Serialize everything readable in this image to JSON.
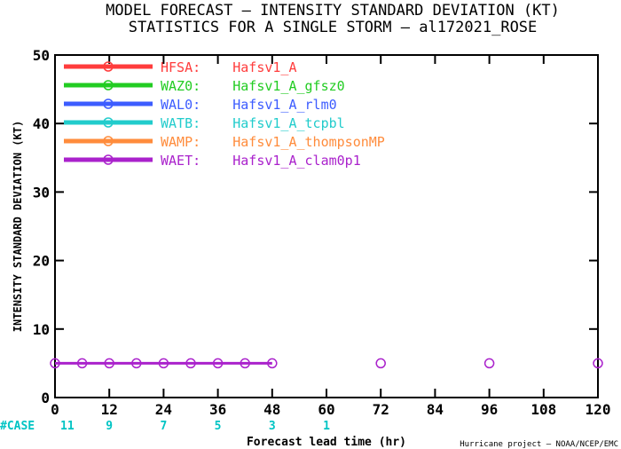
{
  "chart_data": {
    "type": "line",
    "title": "MODEL FORECAST — INTENSITY STANDARD DEVIATION (KT)",
    "subtitle": "STATISTICS FOR A SINGLE STORM — al172021_ROSE",
    "xlabel": "Forecast lead time (hr)",
    "ylabel": "INTENSITY STANDARD DEVIATION (KT)",
    "xlim": [
      0,
      120
    ],
    "ylim": [
      0,
      50
    ],
    "xticks": [
      0,
      12,
      24,
      36,
      48,
      60,
      72,
      84,
      96,
      108,
      120
    ],
    "yticks": [
      0,
      10,
      20,
      30,
      40,
      50
    ],
    "legend_position": "top-left",
    "series": [
      {
        "name": "HFSA: Hafsv1_A",
        "code": "HFSA:",
        "model": "Hafsv1_A",
        "color": "#ff3c3c",
        "x": [],
        "y": []
      },
      {
        "name": "WAZ0: Hafsv1_A_gfsz0",
        "code": "WAZ0:",
        "model": "Hafsv1_A_gfsz0",
        "color": "#22cc22",
        "x": [],
        "y": []
      },
      {
        "name": "WAL0: Hafsv1_A_rlm0",
        "code": "WAL0:",
        "model": "Hafsv1_A_rlm0",
        "color": "#3c5cff",
        "x": [],
        "y": []
      },
      {
        "name": "WATB: Hafsv1_A_tcpbl",
        "code": "WATB:",
        "model": "Hafsv1_A_tcpbl",
        "color": "#22cccc",
        "x": [],
        "y": []
      },
      {
        "name": "WAMP: Hafsv1_A_thompsonMP",
        "code": "WAMP:",
        "model": "Hafsv1_A_thompsonMP",
        "color": "#ff8c3c",
        "x": [],
        "y": []
      },
      {
        "name": "WAET: Hafsv1_A_clam0p1",
        "code": "WAET:",
        "model": "Hafsv1_A_clam0p1",
        "color": "#aa22cc",
        "x": [
          0,
          6,
          12,
          18,
          24,
          30,
          36,
          42,
          48,
          72,
          96,
          120
        ],
        "y": [
          5,
          5,
          5,
          5,
          5,
          5,
          5,
          5,
          5,
          5,
          5,
          5
        ]
      }
    ],
    "cases": {
      "label": "#CASE",
      "color": "#00c4c4",
      "x": [
        0,
        12,
        24,
        36,
        48,
        60
      ],
      "values": [
        "11",
        "9",
        "7",
        "5",
        "3",
        "1"
      ]
    },
    "credit": "Hurricane project — NOAA/NCEP/EMC"
  }
}
